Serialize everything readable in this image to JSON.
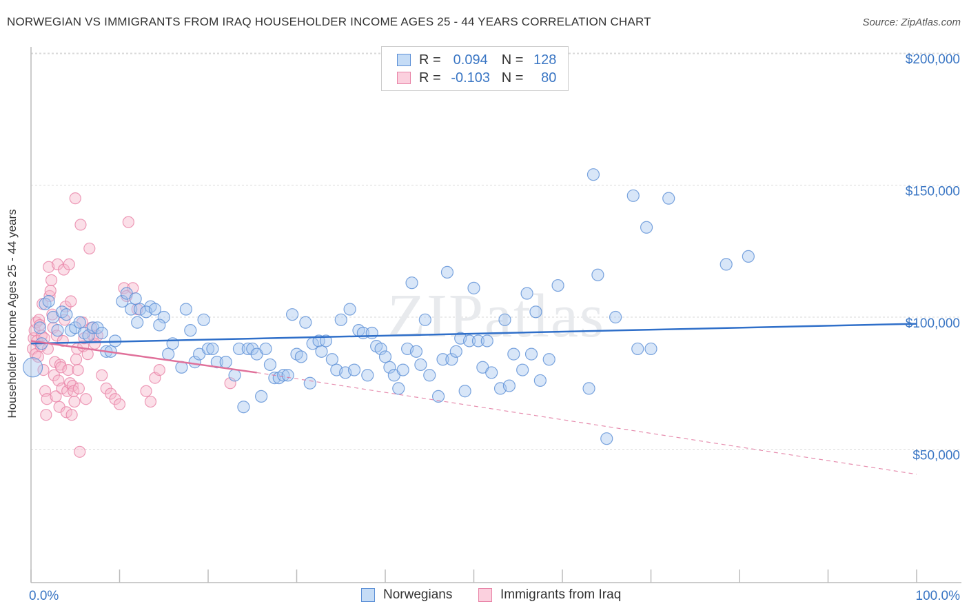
{
  "title": "NORWEGIAN VS IMMIGRANTS FROM IRAQ HOUSEHOLDER INCOME AGES 25 - 44 YEARS CORRELATION CHART",
  "source": "Source: ZipAtlas.com",
  "watermark": "ZIPatlas",
  "legend": {
    "r_label": "R =",
    "n_label": "N =",
    "rows": [
      {
        "r": "0.094",
        "n": "128"
      },
      {
        "r": "-0.103",
        "n": "80"
      }
    ]
  },
  "colors": {
    "norwegians_fill": "#a9c8f0",
    "norwegians_stroke": "#5b8fd6",
    "norwegians_line": "#2f6fc9",
    "iraq_fill": "#f6b8cc",
    "iraq_stroke": "#e882a6",
    "iraq_line": "#e0709a",
    "axis_text": "#3a76c4",
    "grid": "#d9d9d9"
  },
  "chart_data": {
    "type": "scatter",
    "title": "NORWEGIAN VS IMMIGRANTS FROM IRAQ HOUSEHOLDER INCOME AGES 25 - 44 YEARS CORRELATION CHART",
    "xlabel": "",
    "ylabel": "Householder Income Ages 25 - 44 years",
    "xlim": [
      0,
      100
    ],
    "ylim": [
      0,
      205000
    ],
    "x_tick_labels": [
      "0.0%",
      "100.0%"
    ],
    "y_ticks": [
      50000,
      100000,
      150000,
      200000
    ],
    "y_tick_labels": [
      "$50,000",
      "$100,000",
      "$150,000",
      "$200,000"
    ],
    "grid": true,
    "legend_position": "bottom",
    "series": [
      {
        "name": "Norwegians",
        "trend": {
          "x": [
            0,
            100
          ],
          "y": [
            90000,
            97500
          ],
          "dashed_extension": false
        },
        "points": [
          [
            0.2,
            81000
          ],
          [
            1.0,
            96000
          ],
          [
            1.2,
            90000
          ],
          [
            1.6,
            105000
          ],
          [
            2.0,
            106000
          ],
          [
            2.5,
            100000
          ],
          [
            3.0,
            95000
          ],
          [
            3.5,
            102000
          ],
          [
            4.0,
            101000
          ],
          [
            4.5,
            95000
          ],
          [
            5.0,
            96000
          ],
          [
            5.5,
            98000
          ],
          [
            6.0,
            94000
          ],
          [
            6.5,
            93000
          ],
          [
            7.0,
            96000
          ],
          [
            7.5,
            96000
          ],
          [
            8.0,
            94000
          ],
          [
            8.5,
            87000
          ],
          [
            9.0,
            87000
          ],
          [
            9.5,
            91000
          ],
          [
            10.3,
            106000
          ],
          [
            10.8,
            109000
          ],
          [
            11.3,
            103000
          ],
          [
            11.8,
            107000
          ],
          [
            12.0,
            98000
          ],
          [
            12.3,
            103000
          ],
          [
            13.5,
            104000
          ],
          [
            13.0,
            102000
          ],
          [
            14.0,
            103000
          ],
          [
            15.0,
            100000
          ],
          [
            14.5,
            97000
          ],
          [
            15.5,
            86000
          ],
          [
            16.0,
            90000
          ],
          [
            17.0,
            81000
          ],
          [
            17.5,
            103000
          ],
          [
            18.0,
            95000
          ],
          [
            18.5,
            83000
          ],
          [
            19.0,
            86000
          ],
          [
            19.5,
            99000
          ],
          [
            20.0,
            88000
          ],
          [
            20.5,
            88000
          ],
          [
            21.0,
            83000
          ],
          [
            22.0,
            83000
          ],
          [
            23.0,
            78000
          ],
          [
            23.5,
            88000
          ],
          [
            24.0,
            66000
          ],
          [
            24.5,
            88000
          ],
          [
            25.0,
            88000
          ],
          [
            25.5,
            86000
          ],
          [
            26.0,
            70000
          ],
          [
            26.5,
            88000
          ],
          [
            27.0,
            82000
          ],
          [
            27.5,
            77000
          ],
          [
            28.0,
            77000
          ],
          [
            28.5,
            78000
          ],
          [
            29.0,
            78000
          ],
          [
            29.5,
            101000
          ],
          [
            30.0,
            86000
          ],
          [
            30.5,
            85000
          ],
          [
            31.0,
            98000
          ],
          [
            31.5,
            75000
          ],
          [
            31.8,
            90000
          ],
          [
            32.5,
            91000
          ],
          [
            32.8,
            87000
          ],
          [
            33.3,
            91000
          ],
          [
            34.0,
            84000
          ],
          [
            34.5,
            80000
          ],
          [
            35.0,
            99000
          ],
          [
            35.5,
            79000
          ],
          [
            36.0,
            103000
          ],
          [
            36.5,
            80000
          ],
          [
            37.0,
            95000
          ],
          [
            37.5,
            94000
          ],
          [
            38.0,
            78000
          ],
          [
            38.5,
            94000
          ],
          [
            39.0,
            89000
          ],
          [
            39.5,
            88000
          ],
          [
            40.0,
            85000
          ],
          [
            40.5,
            81000
          ],
          [
            41.0,
            78000
          ],
          [
            41.5,
            73000
          ],
          [
            42.0,
            80000
          ],
          [
            42.5,
            88000
          ],
          [
            43.0,
            113000
          ],
          [
            43.5,
            87000
          ],
          [
            44.0,
            82000
          ],
          [
            44.5,
            99000
          ],
          [
            45.0,
            78000
          ],
          [
            46.0,
            70000
          ],
          [
            46.5,
            84000
          ],
          [
            47.0,
            117000
          ],
          [
            47.5,
            84000
          ],
          [
            48.0,
            87000
          ],
          [
            48.5,
            92000
          ],
          [
            49.0,
            72000
          ],
          [
            49.5,
            91000
          ],
          [
            50.0,
            111000
          ],
          [
            50.5,
            91000
          ],
          [
            51.0,
            81000
          ],
          [
            51.5,
            91000
          ],
          [
            52.0,
            79000
          ],
          [
            53.0,
            73000
          ],
          [
            53.5,
            99000
          ],
          [
            54.0,
            74000
          ],
          [
            54.5,
            86000
          ],
          [
            55.5,
            80000
          ],
          [
            56.0,
            109000
          ],
          [
            56.5,
            86000
          ],
          [
            57.0,
            102000
          ],
          [
            57.5,
            76000
          ],
          [
            58.5,
            84000
          ],
          [
            59.5,
            112000
          ],
          [
            63.0,
            73000
          ],
          [
            63.5,
            154000
          ],
          [
            64.0,
            116000
          ],
          [
            65.0,
            54000
          ],
          [
            66.0,
            100000
          ],
          [
            68.0,
            146000
          ],
          [
            68.5,
            88000
          ],
          [
            69.5,
            134000
          ],
          [
            70.0,
            88000
          ],
          [
            72.0,
            145000
          ],
          [
            78.5,
            120000
          ],
          [
            81.0,
            123000
          ]
        ]
      },
      {
        "name": "Immigrants from Iraq",
        "trend": {
          "x": [
            0,
            25.5
          ],
          "y": [
            91000,
            79000
          ],
          "dashed_x": [
            25.5,
            100
          ],
          "dashed_y": [
            79000,
            40500
          ]
        },
        "points": [
          [
            0.2,
            88000
          ],
          [
            0.3,
            92000
          ],
          [
            0.4,
            95000
          ],
          [
            0.5,
            86000
          ],
          [
            0.6,
            98000
          ],
          [
            0.7,
            91000
          ],
          [
            0.8,
            85000
          ],
          [
            0.9,
            99000
          ],
          [
            1.0,
            97000
          ],
          [
            1.1,
            89000
          ],
          [
            1.2,
            93000
          ],
          [
            1.3,
            105000
          ],
          [
            1.4,
            80000
          ],
          [
            1.5,
            92000
          ],
          [
            1.6,
            72000
          ],
          [
            1.7,
            63000
          ],
          [
            1.8,
            69000
          ],
          [
            1.9,
            88000
          ],
          [
            2.0,
            119000
          ],
          [
            2.1,
            108000
          ],
          [
            2.2,
            110000
          ],
          [
            2.3,
            114000
          ],
          [
            2.4,
            101000
          ],
          [
            2.5,
            96000
          ],
          [
            2.6,
            78000
          ],
          [
            2.7,
            83000
          ],
          [
            2.8,
            70000
          ],
          [
            2.9,
            93000
          ],
          [
            3.0,
            120000
          ],
          [
            3.1,
            76000
          ],
          [
            3.2,
            66000
          ],
          [
            3.3,
            82000
          ],
          [
            3.4,
            81000
          ],
          [
            3.5,
            73000
          ],
          [
            3.6,
            91000
          ],
          [
            3.7,
            118000
          ],
          [
            3.8,
            99000
          ],
          [
            3.9,
            104000
          ],
          [
            4.0,
            64000
          ],
          [
            4.1,
            72000
          ],
          [
            4.2,
            80000
          ],
          [
            4.3,
            120000
          ],
          [
            4.4,
            75000
          ],
          [
            4.5,
            106000
          ],
          [
            4.6,
            63000
          ],
          [
            4.7,
            74000
          ],
          [
            4.8,
            72000
          ],
          [
            4.9,
            68000
          ],
          [
            5.0,
            145000
          ],
          [
            5.1,
            84000
          ],
          [
            5.2,
            88000
          ],
          [
            5.3,
            80000
          ],
          [
            5.4,
            73000
          ],
          [
            5.5,
            49000
          ],
          [
            5.6,
            135000
          ],
          [
            5.8,
            98000
          ],
          [
            5.9,
            89000
          ],
          [
            6.0,
            92000
          ],
          [
            6.2,
            69000
          ],
          [
            6.4,
            86000
          ],
          [
            6.6,
            126000
          ],
          [
            6.8,
            96000
          ],
          [
            7.0,
            93000
          ],
          [
            7.2,
            90000
          ],
          [
            7.5,
            93000
          ],
          [
            8.0,
            78000
          ],
          [
            8.5,
            73000
          ],
          [
            9.0,
            71000
          ],
          [
            9.5,
            69000
          ],
          [
            10.0,
            67000
          ],
          [
            10.5,
            111000
          ],
          [
            10.8,
            108000
          ],
          [
            11.0,
            136000
          ],
          [
            11.5,
            111000
          ],
          [
            12.0,
            103000
          ],
          [
            13.0,
            72000
          ],
          [
            13.5,
            68000
          ],
          [
            14.0,
            77000
          ],
          [
            14.5,
            80000
          ],
          [
            22.5,
            75000
          ]
        ]
      }
    ]
  },
  "bottom_legend": [
    "Norwegians",
    "Immigrants from Iraq"
  ]
}
